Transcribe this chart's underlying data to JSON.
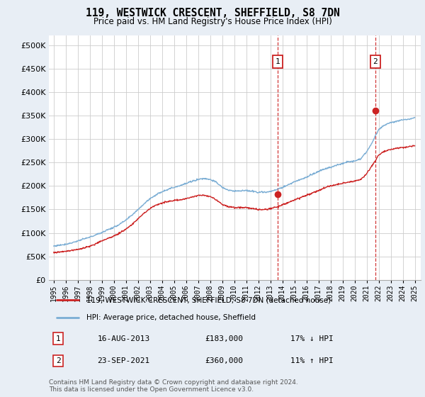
{
  "title": "119, WESTWICK CRESCENT, SHEFFIELD, S8 7DN",
  "subtitle": "Price paid vs. HM Land Registry's House Price Index (HPI)",
  "bg_color": "#e8eef5",
  "plot_bg_color": "#ffffff",
  "legend_line1": "119, WESTWICK CRESCENT, SHEFFIELD, S8 7DN (detached house)",
  "legend_line2": "HPI: Average price, detached house, Sheffield",
  "annotation1": {
    "label": "1",
    "date_str": "16-AUG-2013",
    "price_str": "£183,000",
    "hpi_str": "17% ↓ HPI",
    "year": 2013.62,
    "price": 183000
  },
  "annotation2": {
    "label": "2",
    "date_str": "23-SEP-2021",
    "price_str": "£360,000",
    "hpi_str": "11% ↑ HPI",
    "year": 2021.72,
    "price": 360000
  },
  "footer": "Contains HM Land Registry data © Crown copyright and database right 2024.\nThis data is licensed under the Open Government Licence v3.0.",
  "ylim": [
    0,
    520000
  ],
  "yticks": [
    0,
    50000,
    100000,
    150000,
    200000,
    250000,
    300000,
    350000,
    400000,
    450000,
    500000
  ],
  "hpi_color": "#7aadd4",
  "price_color": "#cc2222",
  "dashed_color": "#cc2222",
  "hpi_years": [
    1995,
    1995.5,
    1996,
    1996.5,
    1997,
    1997.5,
    1998,
    1998.5,
    1999,
    1999.5,
    2000,
    2000.5,
    2001,
    2001.5,
    2002,
    2002.5,
    2003,
    2003.5,
    2004,
    2004.5,
    2005,
    2005.5,
    2006,
    2006.5,
    2007,
    2007.5,
    2008,
    2008.5,
    2009,
    2009.5,
    2010,
    2010.5,
    2011,
    2011.5,
    2012,
    2012.5,
    2013,
    2013.5,
    2014,
    2014.5,
    2015,
    2015.5,
    2016,
    2016.5,
    2017,
    2017.5,
    2018,
    2018.5,
    2019,
    2019.5,
    2020,
    2020.5,
    2021,
    2021.5,
    2022,
    2022.5,
    2023,
    2023.5,
    2024,
    2024.5,
    2025
  ],
  "hpi_values": [
    72000,
    74000,
    76000,
    79000,
    83000,
    87000,
    91000,
    96000,
    101000,
    107000,
    112000,
    119000,
    127000,
    138000,
    150000,
    162000,
    173000,
    181000,
    188000,
    193000,
    197000,
    201000,
    205000,
    210000,
    214000,
    216000,
    214000,
    208000,
    197000,
    191000,
    189000,
    190000,
    190000,
    189000,
    187000,
    187000,
    188000,
    192000,
    197000,
    203000,
    209000,
    214000,
    219000,
    225000,
    231000,
    236000,
    240000,
    244000,
    248000,
    252000,
    253000,
    258000,
    272000,
    295000,
    320000,
    330000,
    335000,
    338000,
    340000,
    342000,
    345000
  ],
  "prop_years": [
    1995,
    1995.5,
    1996,
    1996.5,
    1997,
    1997.5,
    1998,
    1998.5,
    1999,
    1999.5,
    2000,
    2000.5,
    2001,
    2001.5,
    2002,
    2002.5,
    2003,
    2003.5,
    2004,
    2004.5,
    2005,
    2005.5,
    2006,
    2006.5,
    2007,
    2007.5,
    2008,
    2008.5,
    2009,
    2009.5,
    2010,
    2010.5,
    2011,
    2011.5,
    2012,
    2012.5,
    2013,
    2013.5,
    2014,
    2014.5,
    2015,
    2015.5,
    2016,
    2016.5,
    2017,
    2017.5,
    2018,
    2018.5,
    2019,
    2019.5,
    2020,
    2020.5,
    2021,
    2021.5,
    2022,
    2022.5,
    2023,
    2023.5,
    2024,
    2024.5,
    2025
  ],
  "prop_values": [
    58000,
    59000,
    61000,
    63000,
    65000,
    68000,
    72000,
    77000,
    83000,
    88000,
    93000,
    100000,
    108000,
    118000,
    130000,
    142000,
    152000,
    159000,
    164000,
    167000,
    169000,
    170000,
    173000,
    176000,
    180000,
    180000,
    178000,
    170000,
    161000,
    156000,
    154000,
    154000,
    154000,
    152000,
    150000,
    150000,
    152000,
    155000,
    160000,
    165000,
    170000,
    175000,
    180000,
    185000,
    190000,
    196000,
    200000,
    203000,
    206000,
    209000,
    210000,
    214000,
    226000,
    245000,
    266000,
    274000,
    278000,
    281000,
    282000,
    284000,
    286000
  ]
}
